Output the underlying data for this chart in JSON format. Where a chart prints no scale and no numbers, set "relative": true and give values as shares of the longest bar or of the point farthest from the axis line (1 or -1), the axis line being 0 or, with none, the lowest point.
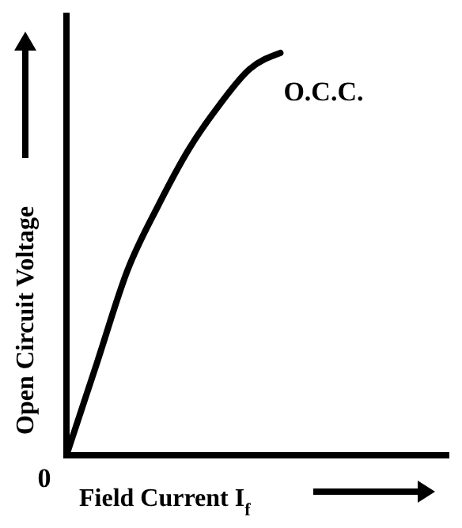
{
  "chart_data": {
    "type": "line",
    "relative": true,
    "xlabel": "Field Current I$_{f}$",
    "ylabel": "Open Circuit Voltage",
    "categories": [
      null,
      null,
      null,
      null,
      null,
      null,
      null,
      null
    ],
    "series": [
      {
        "color": "#000000",
        "values": [
          0,
          0.23,
          0.46,
          0.62,
          0.76,
          0.87,
          0.96,
          1
        ]
      }
    ],
    "annotations": [
      "O.C.C.",
      "0"
    ],
    "marker": "none",
    "line_style": "solid",
    "grid": false
  }
}
